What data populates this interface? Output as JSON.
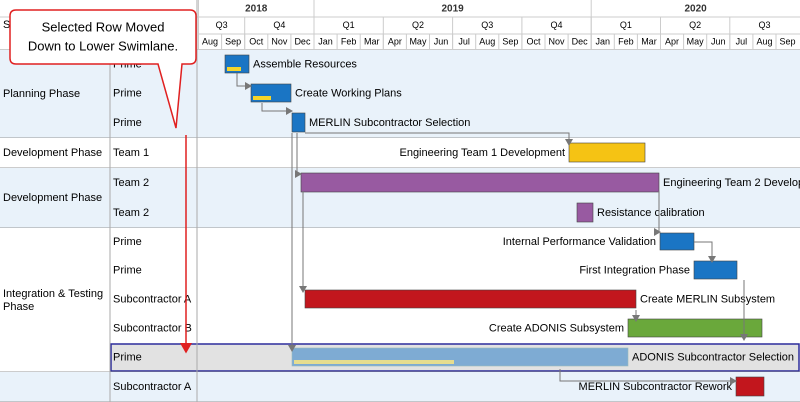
{
  "callout": [
    "Selected Row Moved",
    "Down to Lower Swimlane."
  ],
  "header": {
    "column": "Su",
    "years": [
      "2018",
      "2019",
      "2020"
    ],
    "quarters": [
      "Q3",
      "Q4",
      "Q1",
      "Q2",
      "Q3",
      "Q4",
      "Q1",
      "Q2",
      "Q3"
    ],
    "months": [
      "Aug",
      "Sep",
      "Oct",
      "Nov",
      "Dec",
      "Jan",
      "Feb",
      "Mar",
      "Apr",
      "May",
      "Jun",
      "Jul",
      "Aug",
      "Sep",
      "Oct",
      "Nov",
      "Dec",
      "Jan",
      "Feb",
      "Mar",
      "Apr",
      "May",
      "Jun",
      "Jul",
      "Aug",
      "Sep"
    ]
  },
  "lanes": [
    {
      "name": "Planning Phase",
      "rows": [
        {
          "owner": "Prime",
          "task": "Assemble Resources"
        },
        {
          "owner": "Prime",
          "task": "Create Working Plans"
        },
        {
          "owner": "Prime",
          "task": "MERLIN Subcontractor Selection"
        }
      ]
    },
    {
      "name": "Development Phase",
      "rows": [
        {
          "owner": "Team 1",
          "task": "Engineering Team 1 Development"
        }
      ]
    },
    {
      "name": "Development Phase",
      "rows": [
        {
          "owner": "Team 2",
          "task": "Engineering Team 2 Develop"
        },
        {
          "owner": "Team 2",
          "task": "Resistance calibration"
        }
      ]
    },
    {
      "name": "Integration & Testing Phase",
      "rows": [
        {
          "owner": "Prime",
          "task": "Internal Performance Validation"
        },
        {
          "owner": "Prime",
          "task": "First Integration Phase"
        },
        {
          "owner": "Subcontractor A",
          "task": "Create MERLIN Subsystem"
        },
        {
          "owner": "Subcontractor B",
          "task": "Create ADONIS Subsystem"
        },
        {
          "owner": "Prime",
          "task": "ADONIS Subcontractor Selection"
        }
      ]
    },
    {
      "rows": [
        {
          "owner": "Subcontractor A",
          "task": "MERLIN Subcontractor Rework"
        }
      ]
    }
  ]
}
